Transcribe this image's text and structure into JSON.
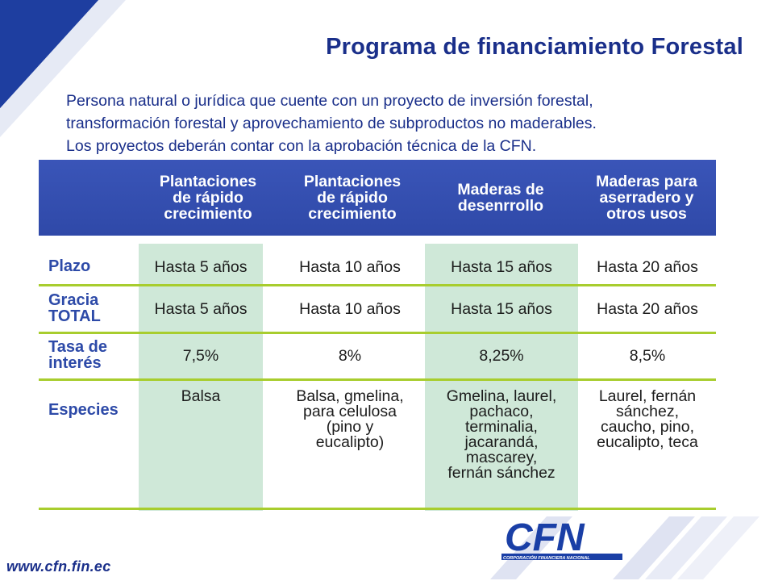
{
  "title": "Programa de financiamiento Forestal",
  "description": [
    "Persona natural o jurídica que cuente con un proyecto de inversión forestal,",
    "transformación forestal y aprovechamiento de subproductos no maderables.",
    "Los proyectos deberán contar con la aprobación técnica de la CFN."
  ],
  "table": {
    "headers": [
      [
        "Plantaciones",
        "de rápido",
        "crecimiento"
      ],
      [
        "Plantaciones",
        "de rápido",
        "crecimiento"
      ],
      [
        "Maderas de",
        "desenrrollo"
      ],
      [
        "Maderas para",
        "aserradero y",
        "otros usos"
      ]
    ],
    "rows": [
      {
        "label": [
          "Plazo"
        ],
        "cells": [
          "Hasta 5 años",
          "Hasta 10 años",
          "Hasta 15 años",
          "Hasta 20 años"
        ]
      },
      {
        "label": [
          "Gracia",
          "TOTAL"
        ],
        "cells": [
          "Hasta 5 años",
          "Hasta 10 años",
          "Hasta 15 años",
          "Hasta 20 años"
        ]
      },
      {
        "label": [
          "Tasa de",
          "interés"
        ],
        "cells": [
          "7,5%",
          "8%",
          "8,25%",
          "8,5%"
        ]
      },
      {
        "label": [
          "Especies"
        ],
        "cells": [
          [
            "Balsa"
          ],
          [
            "Balsa, gmelina,",
            "para celulosa",
            "(pino y",
            "eucalipto)"
          ],
          [
            "Gmelina, laurel,",
            "pachaco,",
            "terminalia,",
            "jacarandá,",
            "mascarey,",
            "fernán sánchez"
          ],
          [
            "Laurel, fernán",
            "sánchez,",
            "caucho, pino,",
            "eucalipto, teca"
          ]
        ]
      }
    ]
  },
  "footer": {
    "url": "www.cfn.fin.ec",
    "logo_text": "CFN",
    "logo_subtitle": "CORPORACIÓN FINANCIERA NACIONAL"
  },
  "colors": {
    "brand_blue": "#1a2f8a",
    "header_blue": "#3550b3",
    "row_label_blue": "#2d4aa8",
    "green_column": "#cfe8d8",
    "green_line": "#a8cd2e"
  }
}
